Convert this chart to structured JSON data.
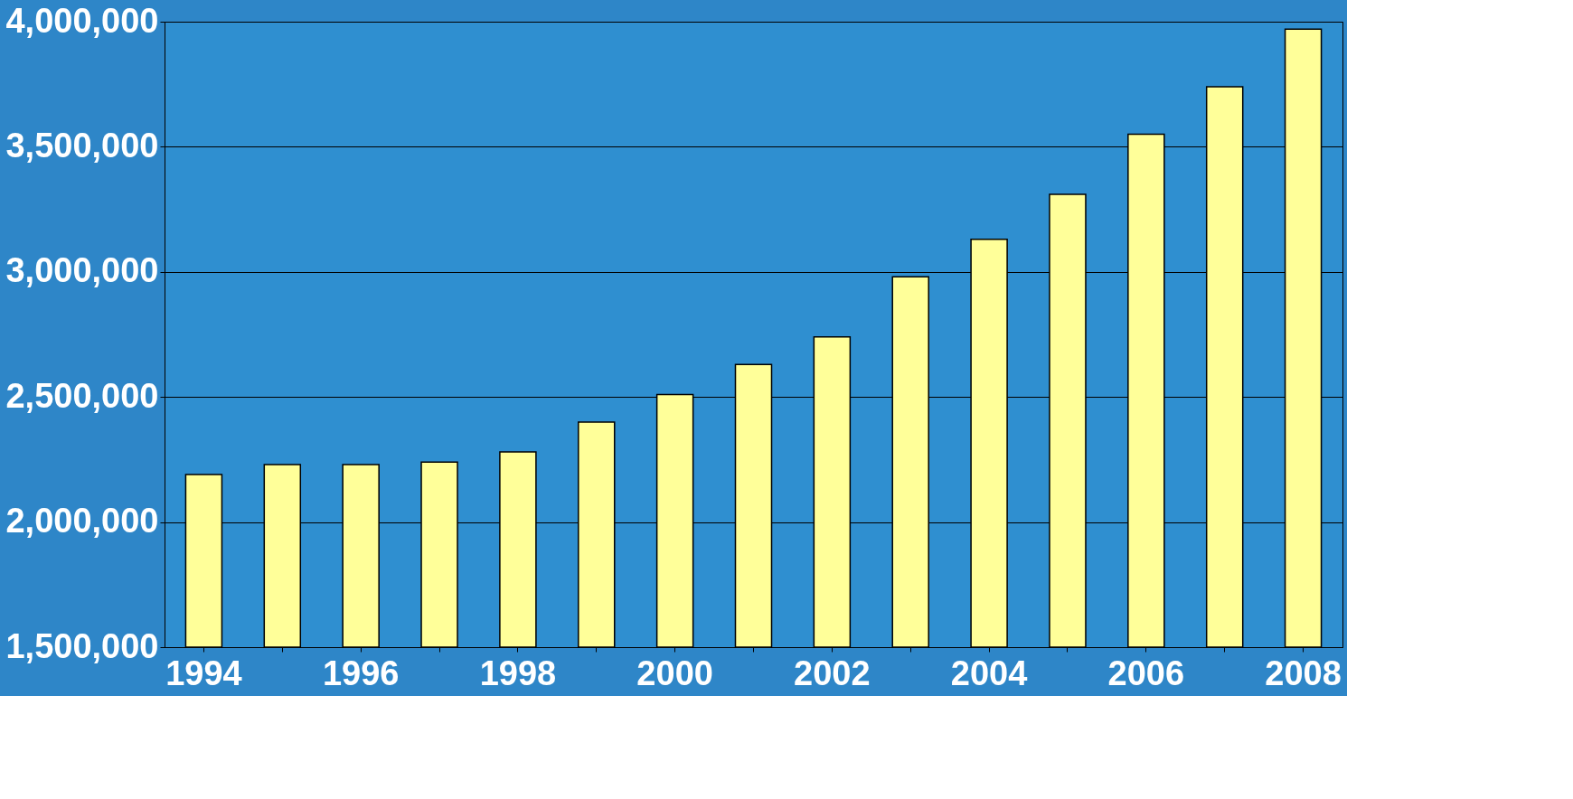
{
  "chart_data": {
    "type": "bar",
    "categories": [
      "1994",
      null,
      "1996",
      null,
      "1998",
      null,
      "2000",
      null,
      "2002",
      null,
      "2004",
      null,
      "2006",
      null,
      "2008"
    ],
    "values": [
      2190000,
      2230000,
      2230000,
      2240000,
      2280000,
      2400000,
      2510000,
      2630000,
      2740000,
      2980000,
      3130000,
      3310000,
      3550000,
      3740000,
      3970000
    ],
    "color": "#ffff99",
    "ylim": [
      1500000,
      4000000
    ],
    "yticks": [
      {
        "value": 1500000,
        "label": "1,500,000"
      },
      {
        "value": 2000000,
        "label": "2,000,000"
      },
      {
        "value": 2500000,
        "label": "2,500,000"
      },
      {
        "value": 3000000,
        "label": "3,000,000"
      },
      {
        "value": 3500000,
        "label": "3,500,000"
      },
      {
        "value": 4000000,
        "label": "4,000,000"
      }
    ],
    "grid": "y"
  }
}
